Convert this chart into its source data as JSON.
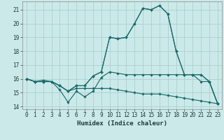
{
  "xlabel": "Humidex (Indice chaleur)",
  "xlim": [
    -0.5,
    23.5
  ],
  "ylim": [
    13.8,
    21.6
  ],
  "yticks": [
    14,
    15,
    16,
    17,
    18,
    19,
    20,
    21
  ],
  "xticks": [
    0,
    1,
    2,
    3,
    4,
    5,
    6,
    7,
    8,
    9,
    10,
    11,
    12,
    13,
    14,
    15,
    16,
    17,
    18,
    19,
    20,
    21,
    22,
    23
  ],
  "bg_color": "#cce9e9",
  "grid_color": "#aacfcf",
  "line_color": "#1a6b6b",
  "line1": [
    16.0,
    15.8,
    15.9,
    15.8,
    15.2,
    14.3,
    15.1,
    14.7,
    15.1,
    16.1,
    16.5,
    16.4,
    16.3,
    16.3,
    16.3,
    16.3,
    16.3,
    16.3,
    16.3,
    16.3,
    16.3,
    16.3,
    15.8,
    14.2
  ],
  "line2": [
    16.0,
    15.8,
    15.8,
    15.8,
    15.5,
    15.1,
    15.5,
    15.5,
    16.2,
    16.5,
    19.0,
    18.9,
    19.0,
    20.0,
    21.1,
    21.0,
    21.3,
    20.7,
    18.0,
    16.3,
    16.3,
    16.3,
    15.8,
    14.2
  ],
  "line3": [
    16.0,
    15.8,
    15.8,
    15.8,
    15.5,
    15.1,
    15.5,
    15.5,
    16.2,
    16.5,
    19.0,
    18.9,
    19.0,
    20.0,
    21.1,
    21.0,
    21.3,
    20.7,
    18.0,
    16.3,
    16.3,
    15.8,
    15.8,
    14.2
  ],
  "line4": [
    16.0,
    15.8,
    15.8,
    15.8,
    15.5,
    15.1,
    15.3,
    15.3,
    15.3,
    15.3,
    15.3,
    15.2,
    15.1,
    15.0,
    14.9,
    14.9,
    14.9,
    14.8,
    14.7,
    14.6,
    14.5,
    14.4,
    14.3,
    14.2
  ]
}
